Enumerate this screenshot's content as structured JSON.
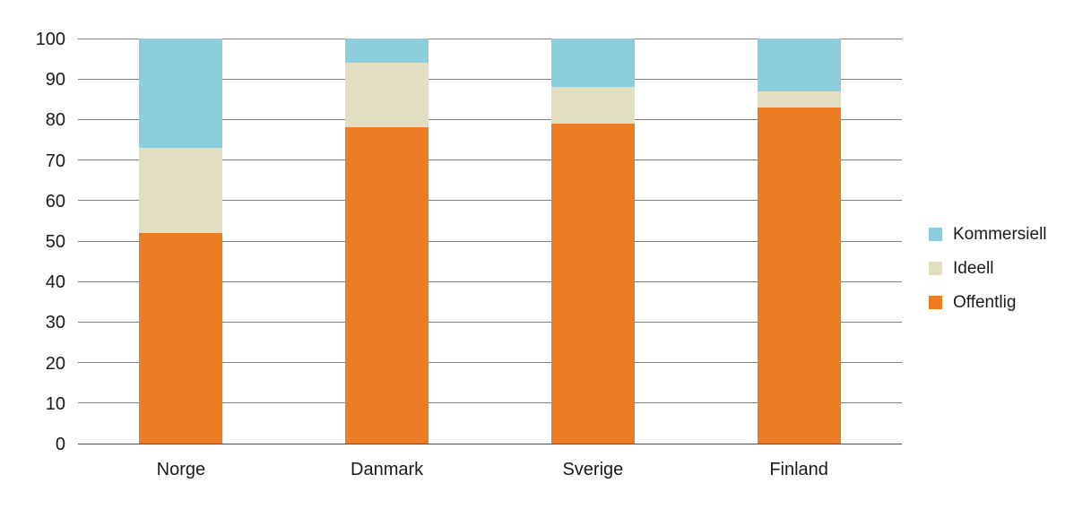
{
  "colors": {
    "offentlig": "#ED7D24",
    "ideell": "#E2DEC1",
    "kommersiell": "#8DCEDD",
    "gridline": "#7F7F7F",
    "baseline": "#4D4D4D",
    "text": "#1A1A1A",
    "background": "#FFFFFF"
  },
  "chart_data": {
    "type": "bar",
    "stacked": true,
    "title": "",
    "xlabel": "",
    "ylabel": "",
    "categories": [
      "Norge",
      "Danmark",
      "Sverige",
      "Finland"
    ],
    "series": [
      {
        "name": "Offentlig",
        "color": "#ED7D24",
        "values": [
          52,
          78,
          79,
          83
        ]
      },
      {
        "name": "Ideell",
        "color": "#E2DEC1",
        "values": [
          21,
          16,
          9,
          4
        ]
      },
      {
        "name": "Kommersiell",
        "color": "#8DCEDD",
        "values": [
          27,
          6,
          12,
          13
        ]
      }
    ],
    "legend_order_top_to_bottom": [
      "Kommersiell",
      "Ideell",
      "Offentlig"
    ],
    "legend_position": "right",
    "ylim": [
      0,
      100
    ],
    "ytick_step": 10,
    "yticks": [
      0,
      10,
      20,
      30,
      40,
      50,
      60,
      70,
      80,
      90,
      100
    ],
    "grid": true
  }
}
